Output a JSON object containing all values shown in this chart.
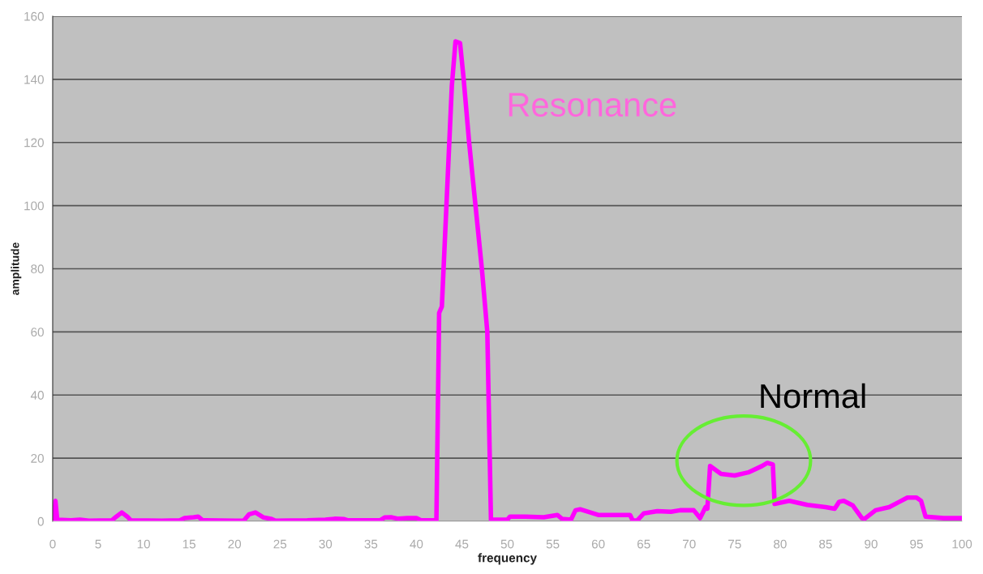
{
  "chart_data": {
    "type": "line",
    "xlabel": "frequency",
    "ylabel": "amplitude",
    "xlim": [
      0,
      100
    ],
    "xticks": [
      0,
      5,
      10,
      15,
      20,
      25,
      30,
      35,
      40,
      45,
      50,
      55,
      60,
      65,
      70,
      75,
      80,
      85,
      90,
      95,
      100
    ],
    "ylim": [
      0,
      160
    ],
    "yticks": [
      0,
      20,
      40,
      60,
      80,
      100,
      120,
      140,
      160
    ],
    "grid": "y",
    "marker": "none",
    "line_style": "solid",
    "x": [
      0.1,
      0.3,
      0.5,
      2,
      3,
      4,
      6.5,
      7,
      7.6,
      8.2,
      8.6,
      12,
      14,
      14.5,
      15.5,
      16,
      16.5,
      20,
      21,
      21.6,
      22.3,
      23.2,
      24,
      24.5,
      28,
      30,
      31,
      32,
      32.5,
      36,
      36.5,
      37.2,
      38,
      39,
      40,
      40.5,
      42.2,
      42.5,
      42.8,
      43.9,
      44.3,
      44.8,
      45.2,
      45.8,
      46.5,
      47.2,
      47.8,
      48.2,
      50,
      50.3,
      52,
      54,
      55.5,
      56,
      57,
      57.5,
      58,
      60,
      63.5,
      63.8,
      64.3,
      65,
      66.5,
      68,
      69,
      70.5,
      71.2,
      71.8,
      72,
      72.3,
      73.5,
      75,
      76.5,
      78,
      78.6,
      79.2,
      79.4,
      81,
      83,
      85,
      86,
      86.5,
      87,
      88,
      89,
      89.3,
      90.5,
      92,
      93,
      94,
      95,
      95.5,
      96,
      98,
      100
    ],
    "series": [
      {
        "color": "#ff00ff",
        "values": [
          0,
          6.5,
          0.5,
          0.3,
          0.5,
          0.2,
          0.3,
          1.5,
          2.8,
          1.5,
          0.3,
          0.2,
          0.3,
          1,
          1.3,
          1.5,
          0.3,
          0.2,
          0.2,
          2.2,
          2.8,
          1.2,
          0.8,
          0.2,
          0.3,
          0.5,
          0.8,
          0.7,
          0.3,
          0.3,
          1.2,
          1.3,
          0.8,
          1,
          1,
          0.3,
          0.3,
          66,
          68,
          138,
          152,
          151.5,
          140,
          120,
          100,
          80,
          60,
          0.5,
          0.5,
          1.5,
          1.5,
          1.3,
          2,
          0.8,
          0.5,
          3.5,
          3.8,
          2,
          2,
          0.2,
          0.3,
          2.5,
          3.2,
          3,
          3.5,
          3.5,
          1,
          4.5,
          4,
          17.5,
          15,
          14.5,
          15.5,
          17.5,
          18.5,
          18,
          5.5,
          6.5,
          5.2,
          4.5,
          4,
          6.2,
          6.5,
          5,
          1,
          0.8,
          3.5,
          4.5,
          6,
          7.5,
          7.5,
          6.5,
          1.5,
          1,
          1
        ]
      }
    ],
    "annotations": [
      "Resonance",
      "Normal"
    ]
  }
}
